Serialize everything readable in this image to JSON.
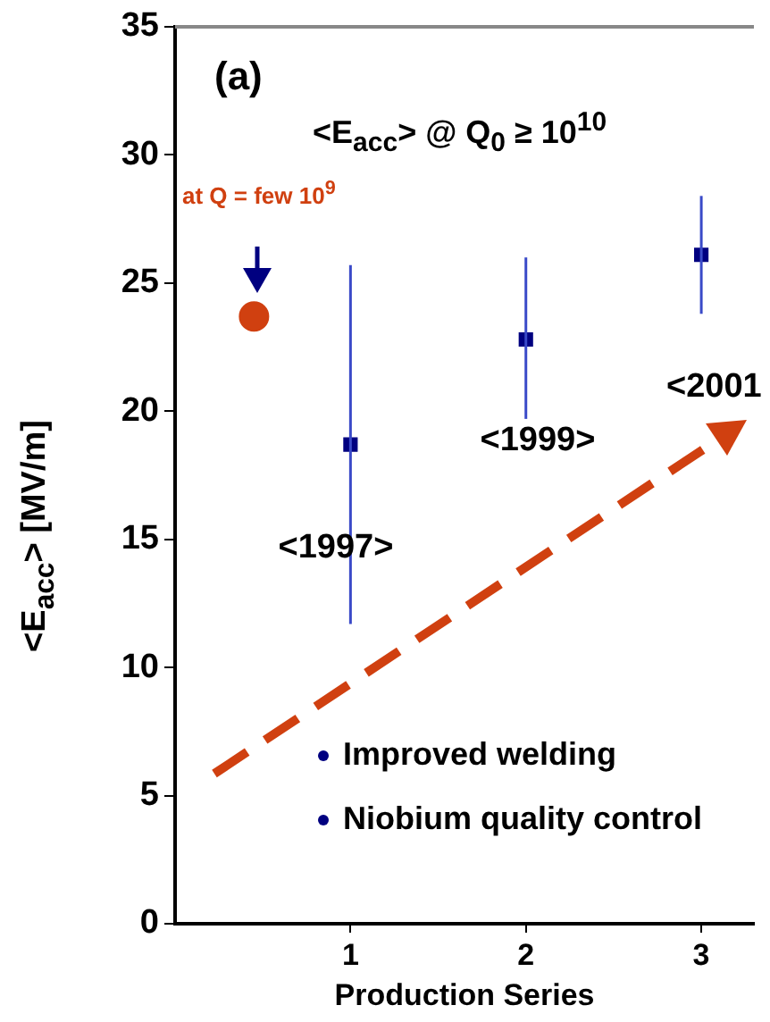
{
  "chart_data": {
    "type": "scatter",
    "xlabel": "Production Series",
    "ylabel": "<E$_{acc}$> [MV/m]",
    "xlim": [
      0,
      3.3
    ],
    "xticks": [
      1,
      2,
      3
    ],
    "ylim": [
      0,
      35
    ],
    "yticks": [
      0,
      5,
      10,
      15,
      20,
      25,
      30,
      35
    ],
    "grid": false,
    "legend": false,
    "series": [
      {
        "color": "#000080",
        "marker": "square",
        "x": [
          1,
          2,
          3
        ],
        "values": [
          18.7,
          22.8,
          26.1
        ],
        "errors": [
          [
            11.7,
            25.7
          ],
          [
            19.7,
            26.0
          ],
          [
            23.8,
            28.4
          ]
        ]
      },
      {
        "color": "#d04010",
        "marker": "circle",
        "x": [
          0.45
        ],
        "values": [
          23.7
        ]
      }
    ],
    "annotations": [
      "(a)",
      "<E$_{acc}$> @ Q$_{0}$ ≥ 10$^{10}$",
      "at Q = few 10$^{9}$",
      "<1997>",
      "<1999>",
      "<2001",
      "Improved welding",
      "Niobium quality control"
    ]
  }
}
